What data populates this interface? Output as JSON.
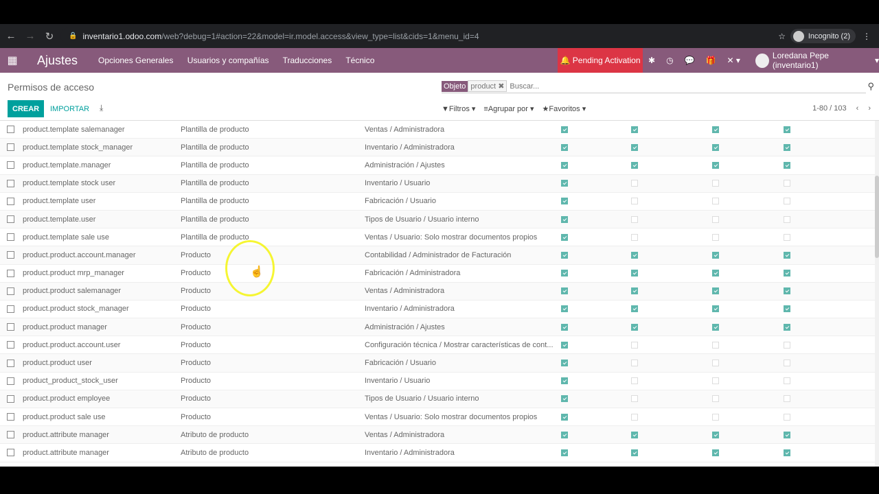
{
  "browser": {
    "host": "inventario1.odoo.com",
    "path": "/web?debug=1#action=22&model=ir.model.access&view_type=list&cids=1&menu_id=4",
    "incognito": "Incognito (2)"
  },
  "topbar": {
    "brand": "Ajustes",
    "menu": [
      "Opciones Generales",
      "Usuarios y compañías",
      "Traducciones",
      "Técnico"
    ],
    "pending": "Pending Activation",
    "user": "Loredana Pepe (inventario1)"
  },
  "control": {
    "title": "Permisos de acceso",
    "facet_label": "Objeto",
    "facet_value": "product",
    "search_placeholder": "Buscar...",
    "create": "CREAR",
    "import": "IMPORTAR",
    "filters": "Filtros",
    "group_by": "Agrupar por",
    "favorites": "Favoritos",
    "pager": "1-80 / 103"
  },
  "rows": [
    {
      "name": "product.template salemanager",
      "object": "Plantilla de producto",
      "group": "Ventas / Administradora",
      "perms": [
        1,
        1,
        1,
        1
      ]
    },
    {
      "name": "product.template stock_manager",
      "object": "Plantilla de producto",
      "group": "Inventario / Administradora",
      "perms": [
        1,
        1,
        1,
        1
      ]
    },
    {
      "name": "product.template.manager",
      "object": "Plantilla de producto",
      "group": "Administración / Ajustes",
      "perms": [
        1,
        1,
        1,
        1
      ]
    },
    {
      "name": "product.template stock user",
      "object": "Plantilla de producto",
      "group": "Inventario / Usuario",
      "perms": [
        1,
        0,
        0,
        0
      ]
    },
    {
      "name": "product.template user",
      "object": "Plantilla de producto",
      "group": "Fabricación / Usuario",
      "perms": [
        1,
        0,
        0,
        0
      ]
    },
    {
      "name": "product.template.user",
      "object": "Plantilla de producto",
      "group": "Tipos de Usuario / Usuario interno",
      "perms": [
        1,
        0,
        0,
        0
      ]
    },
    {
      "name": "product.template sale use",
      "object": "Plantilla de producto",
      "group": "Ventas / Usuario: Solo mostrar documentos propios",
      "perms": [
        1,
        0,
        0,
        0
      ]
    },
    {
      "name": "product.product.account.manager",
      "object": "Producto",
      "group": "Contabilidad / Administrador de Facturación",
      "perms": [
        1,
        1,
        1,
        1
      ]
    },
    {
      "name": "product.product mrp_manager",
      "object": "Producto",
      "group": "Fabricación / Administradora",
      "perms": [
        1,
        1,
        1,
        1
      ]
    },
    {
      "name": "product.product salemanager",
      "object": "Producto",
      "group": "Ventas / Administradora",
      "perms": [
        1,
        1,
        1,
        1
      ]
    },
    {
      "name": "product.product stock_manager",
      "object": "Producto",
      "group": "Inventario / Administradora",
      "perms": [
        1,
        1,
        1,
        1
      ]
    },
    {
      "name": "product.product manager",
      "object": "Producto",
      "group": "Administración / Ajustes",
      "perms": [
        1,
        1,
        1,
        1
      ]
    },
    {
      "name": "product.product.account.user",
      "object": "Producto",
      "group": "Configuración técnica / Mostrar características de cont...",
      "perms": [
        1,
        0,
        0,
        0
      ]
    },
    {
      "name": "product.product user",
      "object": "Producto",
      "group": "Fabricación / Usuario",
      "perms": [
        1,
        0,
        0,
        0
      ]
    },
    {
      "name": "product_product_stock_user",
      "object": "Producto",
      "group": "Inventario / Usuario",
      "perms": [
        1,
        0,
        0,
        0
      ]
    },
    {
      "name": "product.product employee",
      "object": "Producto",
      "group": "Tipos de Usuario / Usuario interno",
      "perms": [
        1,
        0,
        0,
        0
      ]
    },
    {
      "name": "product.product sale use",
      "object": "Producto",
      "group": "Ventas / Usuario: Solo mostrar documentos propios",
      "perms": [
        1,
        0,
        0,
        0
      ]
    },
    {
      "name": "product.attribute manager",
      "object": "Atributo de producto",
      "group": "Ventas / Administradora",
      "perms": [
        1,
        1,
        1,
        1
      ]
    },
    {
      "name": "product.attribute manager",
      "object": "Atributo de producto",
      "group": "Inventario / Administradora",
      "perms": [
        1,
        1,
        1,
        1
      ]
    }
  ],
  "colors": {
    "brand": "#875a7b",
    "accent": "#00a09d",
    "pending": "#dc3545",
    "checked": "#5fb7ad"
  }
}
